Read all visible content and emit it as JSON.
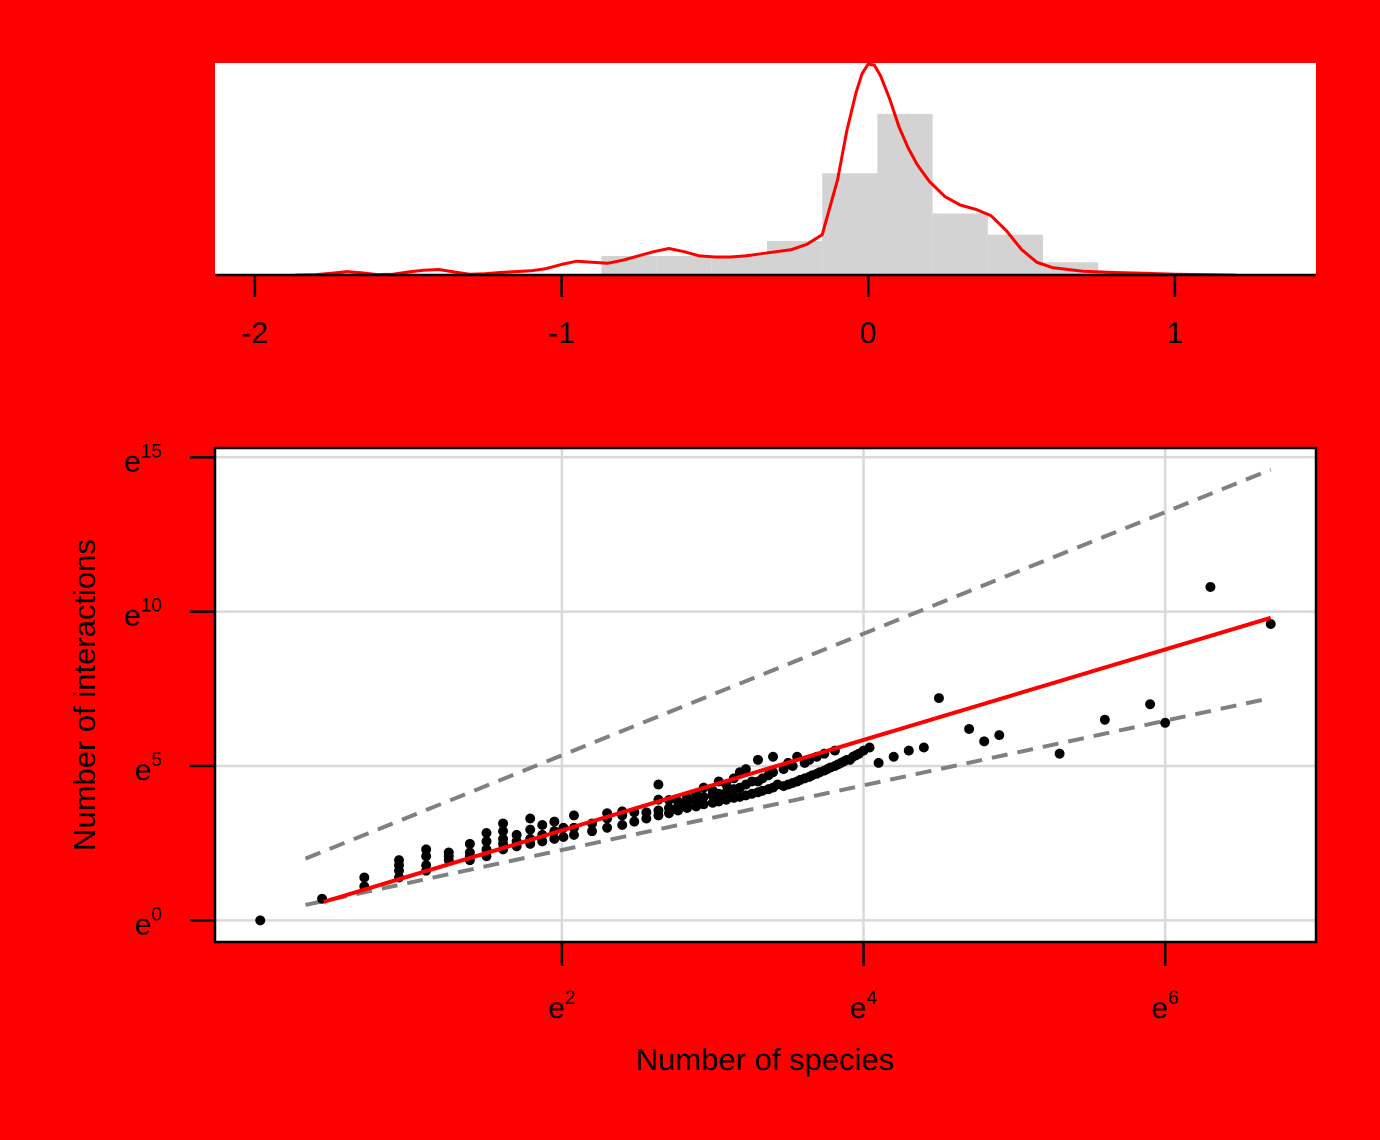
{
  "colors": {
    "background": "#ff0000",
    "panel": "#ffffff",
    "histogram_bars": "#d3d3d3",
    "density_line": "#ff0000",
    "points": "#000000",
    "fit_line": "#ff0000",
    "bound_lines": "#808080",
    "grid": "#d9d9d9"
  },
  "chart_data": [
    {
      "type": "bar",
      "description_kind": "histogram-with-density",
      "x_ticks": [
        {
          "value": -2,
          "label": "-2"
        },
        {
          "value": -1,
          "label": "-1"
        },
        {
          "value": 0,
          "label": "0"
        },
        {
          "value": 1,
          "label": "1"
        }
      ],
      "xlim": [
        -2.13,
        1.46
      ],
      "ylim": [
        0,
        1.0
      ],
      "histogram": {
        "bin_width": 0.18,
        "bin_starts": [
          -0.87,
          -0.69,
          -0.51,
          -0.33,
          -0.15,
          0.03,
          0.21,
          0.39,
          0.57
        ],
        "heights": [
          0.09,
          0.09,
          0.09,
          0.16,
          0.48,
          0.76,
          0.29,
          0.19,
          0.06
        ]
      },
      "density": {
        "x": [
          -1.87,
          -1.8,
          -1.75,
          -1.7,
          -1.65,
          -1.6,
          -1.55,
          -1.5,
          -1.45,
          -1.4,
          -1.35,
          -1.3,
          -1.25,
          -1.2,
          -1.15,
          -1.1,
          -1.05,
          -1.0,
          -0.95,
          -0.9,
          -0.85,
          -0.8,
          -0.75,
          -0.7,
          -0.65,
          -0.6,
          -0.55,
          -0.5,
          -0.45,
          -0.4,
          -0.35,
          -0.3,
          -0.25,
          -0.2,
          -0.15,
          -0.1,
          -0.07,
          -0.04,
          -0.02,
          0.0,
          0.02,
          0.04,
          0.07,
          0.1,
          0.13,
          0.16,
          0.2,
          0.25,
          0.3,
          0.35,
          0.4,
          0.45,
          0.5,
          0.55,
          0.6,
          0.7,
          0.8,
          0.9,
          1.0,
          1.1,
          1.2
        ],
        "y": [
          0.0,
          0.002,
          0.008,
          0.016,
          0.01,
          0.002,
          0.004,
          0.014,
          0.022,
          0.026,
          0.014,
          0.004,
          0.006,
          0.012,
          0.016,
          0.02,
          0.03,
          0.05,
          0.065,
          0.06,
          0.055,
          0.07,
          0.09,
          0.11,
          0.125,
          0.11,
          0.09,
          0.085,
          0.085,
          0.09,
          0.1,
          0.11,
          0.12,
          0.145,
          0.19,
          0.45,
          0.68,
          0.86,
          0.95,
          0.995,
          0.99,
          0.94,
          0.83,
          0.7,
          0.6,
          0.52,
          0.44,
          0.37,
          0.33,
          0.31,
          0.28,
          0.21,
          0.12,
          0.06,
          0.035,
          0.018,
          0.012,
          0.008,
          0.004,
          0.002,
          0.0
        ]
      }
    },
    {
      "type": "scatter",
      "xlabel": "Number of species",
      "ylabel": "Number of interactions",
      "x_scale": "log (base e)",
      "y_scale": "log (base e)",
      "xlim": [
        -0.3,
        7.0
      ],
      "ylim": [
        -0.7,
        15.3
      ],
      "x_ticks": [
        {
          "value": 2,
          "base": "e",
          "exp": "2"
        },
        {
          "value": 4,
          "base": "e",
          "exp": "4"
        },
        {
          "value": 6,
          "base": "e",
          "exp": "6"
        }
      ],
      "y_ticks": [
        {
          "value": 0,
          "base": "e",
          "exp": "0"
        },
        {
          "value": 5,
          "base": "e",
          "exp": "5"
        },
        {
          "value": 10,
          "base": "e",
          "exp": "10"
        },
        {
          "value": 15,
          "base": "e",
          "exp": "15"
        }
      ],
      "grid": true,
      "points": [
        [
          0.0,
          0.0
        ],
        [
          0.41,
          0.7
        ],
        [
          0.69,
          1.1
        ],
        [
          0.69,
          1.39
        ],
        [
          0.92,
          1.39
        ],
        [
          0.92,
          1.61
        ],
        [
          0.92,
          1.79
        ],
        [
          0.92,
          1.95
        ],
        [
          1.1,
          1.61
        ],
        [
          1.1,
          1.79
        ],
        [
          1.1,
          2.08
        ],
        [
          1.1,
          2.3
        ],
        [
          1.25,
          1.95
        ],
        [
          1.25,
          2.08
        ],
        [
          1.25,
          2.2
        ],
        [
          1.39,
          1.95
        ],
        [
          1.39,
          2.08
        ],
        [
          1.39,
          2.2
        ],
        [
          1.39,
          2.48
        ],
        [
          1.5,
          2.08
        ],
        [
          1.5,
          2.3
        ],
        [
          1.5,
          2.56
        ],
        [
          1.5,
          2.83
        ],
        [
          1.61,
          2.3
        ],
        [
          1.61,
          2.48
        ],
        [
          1.61,
          2.64
        ],
        [
          1.61,
          2.89
        ],
        [
          1.61,
          3.14
        ],
        [
          1.7,
          2.4
        ],
        [
          1.7,
          2.56
        ],
        [
          1.7,
          2.77
        ],
        [
          1.79,
          2.48
        ],
        [
          1.79,
          2.64
        ],
        [
          1.79,
          2.94
        ],
        [
          1.79,
          3.3
        ],
        [
          1.87,
          2.56
        ],
        [
          1.87,
          2.77
        ],
        [
          1.87,
          3.09
        ],
        [
          1.95,
          2.64
        ],
        [
          1.95,
          2.89
        ],
        [
          1.95,
          3.2
        ],
        [
          2.01,
          2.7
        ],
        [
          2.01,
          3.0
        ],
        [
          2.08,
          2.77
        ],
        [
          2.08,
          3.0
        ],
        [
          2.08,
          3.4
        ],
        [
          2.2,
          2.89
        ],
        [
          2.2,
          3.14
        ],
        [
          2.3,
          3.0
        ],
        [
          2.3,
          3.3
        ],
        [
          2.3,
          3.47
        ],
        [
          2.4,
          3.09
        ],
        [
          2.4,
          3.4
        ],
        [
          2.4,
          3.53
        ],
        [
          2.48,
          3.2
        ],
        [
          2.48,
          3.5
        ],
        [
          2.56,
          3.3
        ],
        [
          2.56,
          3.5
        ],
        [
          2.64,
          3.4
        ],
        [
          2.64,
          3.56
        ],
        [
          2.64,
          3.91
        ],
        [
          2.64,
          4.4
        ],
        [
          2.71,
          3.47
        ],
        [
          2.71,
          3.64
        ],
        [
          2.71,
          3.9
        ],
        [
          2.77,
          3.56
        ],
        [
          2.77,
          3.7
        ],
        [
          2.77,
          3.85
        ],
        [
          2.83,
          3.64
        ],
        [
          2.83,
          3.8
        ],
        [
          2.83,
          3.97
        ],
        [
          2.89,
          3.69
        ],
        [
          2.89,
          3.9
        ],
        [
          2.89,
          4.1
        ],
        [
          2.94,
          3.76
        ],
        [
          2.94,
          4.0
        ],
        [
          2.94,
          4.3
        ],
        [
          3.0,
          3.81
        ],
        [
          3.0,
          4.05
        ],
        [
          3.0,
          4.2
        ],
        [
          3.04,
          3.85
        ],
        [
          3.04,
          4.1
        ],
        [
          3.04,
          4.5
        ],
        [
          3.09,
          3.91
        ],
        [
          3.09,
          4.15
        ],
        [
          3.09,
          4.4
        ],
        [
          3.14,
          3.97
        ],
        [
          3.14,
          4.25
        ],
        [
          3.14,
          4.6
        ],
        [
          3.18,
          4.0
        ],
        [
          3.18,
          4.3
        ],
        [
          3.18,
          4.8
        ],
        [
          3.22,
          4.05
        ],
        [
          3.22,
          4.4
        ],
        [
          3.22,
          4.9
        ],
        [
          3.26,
          4.1
        ],
        [
          3.26,
          4.5
        ],
        [
          3.3,
          4.15
        ],
        [
          3.3,
          4.5
        ],
        [
          3.3,
          5.2
        ],
        [
          3.33,
          4.2
        ],
        [
          3.33,
          4.6
        ],
        [
          3.37,
          4.25
        ],
        [
          3.37,
          4.7
        ],
        [
          3.4,
          4.3
        ],
        [
          3.4,
          4.8
        ],
        [
          3.4,
          5.3
        ],
        [
          3.43,
          4.4
        ],
        [
          3.47,
          4.35
        ],
        [
          3.47,
          4.9
        ],
        [
          3.5,
          4.4
        ],
        [
          3.5,
          5.1
        ],
        [
          3.53,
          4.45
        ],
        [
          3.53,
          5.0
        ],
        [
          3.56,
          4.5
        ],
        [
          3.56,
          5.3
        ],
        [
          3.58,
          4.55
        ],
        [
          3.61,
          4.6
        ],
        [
          3.61,
          5.1
        ],
        [
          3.64,
          4.65
        ],
        [
          3.64,
          5.2
        ],
        [
          3.66,
          4.7
        ],
        [
          3.69,
          4.75
        ],
        [
          3.69,
          5.3
        ],
        [
          3.71,
          4.8
        ],
        [
          3.74,
          4.85
        ],
        [
          3.74,
          5.4
        ],
        [
          3.76,
          4.9
        ],
        [
          3.78,
          4.95
        ],
        [
          3.81,
          5.0
        ],
        [
          3.81,
          5.5
        ],
        [
          3.83,
          5.05
        ],
        [
          3.85,
          5.1
        ],
        [
          3.87,
          5.15
        ],
        [
          3.89,
          5.2
        ],
        [
          3.91,
          5.2
        ],
        [
          3.93,
          5.3
        ],
        [
          3.95,
          5.35
        ],
        [
          3.97,
          5.4
        ],
        [
          4.0,
          5.5
        ],
        [
          4.04,
          5.6
        ],
        [
          4.1,
          5.1
        ],
        [
          4.2,
          5.3
        ],
        [
          4.3,
          5.5
        ],
        [
          4.4,
          5.6
        ],
        [
          4.5,
          7.2
        ],
        [
          4.7,
          6.2
        ],
        [
          4.8,
          5.8
        ],
        [
          4.9,
          6.0
        ],
        [
          5.3,
          5.4
        ],
        [
          5.6,
          6.5
        ],
        [
          5.9,
          7.0
        ],
        [
          6.0,
          6.4
        ],
        [
          6.3,
          10.8
        ],
        [
          6.7,
          9.6
        ]
      ],
      "fit_line": {
        "x": [
          0.42,
          6.7
        ],
        "y": [
          0.6,
          9.8
        ]
      },
      "upper_bound": {
        "x": [
          0.3,
          6.7
        ],
        "y": [
          2.0,
          14.6
        ]
      },
      "lower_bound": {
        "x": [
          0.3,
          6.7
        ],
        "y": [
          0.5,
          7.2
        ]
      }
    }
  ]
}
